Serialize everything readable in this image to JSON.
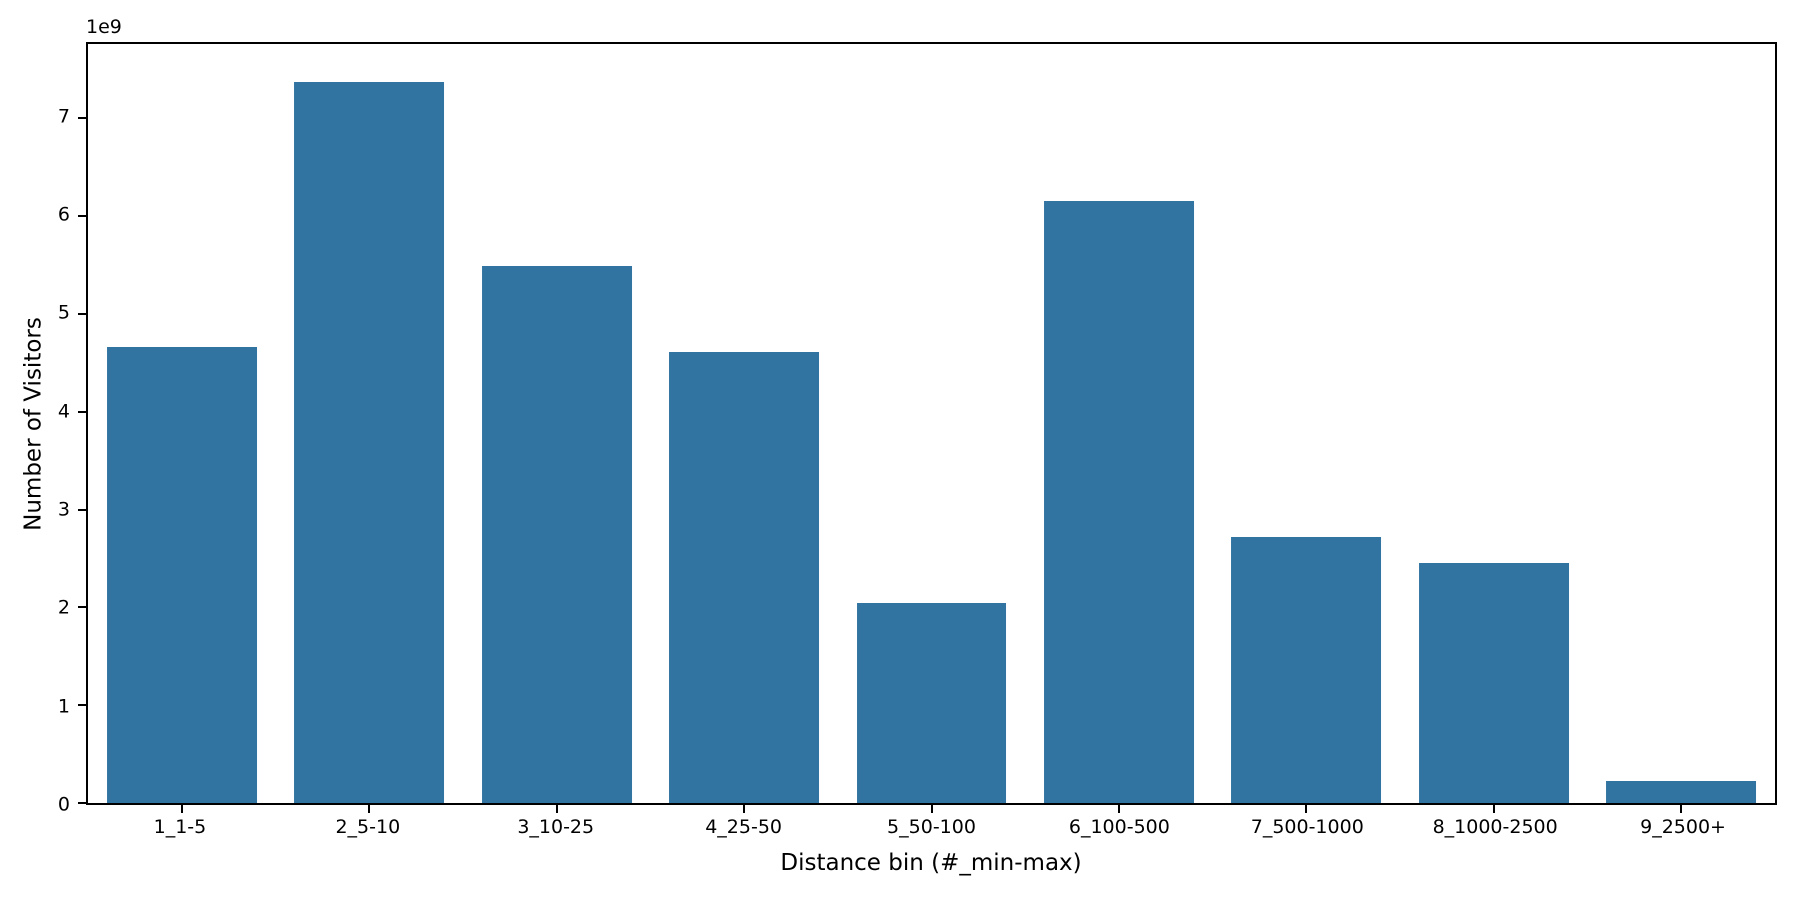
{
  "figure": {
    "background": "#ffffff",
    "bar_color": "#3274a1",
    "axis_color": "#000000",
    "text_color": "#000000"
  },
  "chart_data": {
    "type": "bar",
    "title": "",
    "xlabel": "Distance bin (#_min-max)",
    "ylabel": "Number of Visitors",
    "y_offset_text": "1e9",
    "grid": false,
    "legend_position": "none",
    "bar_width_fraction": 0.8,
    "categories": [
      "1_1-5",
      "2_5-10",
      "3_10-25",
      "4_25-50",
      "5_50-100",
      "6_100-500",
      "7_500-1000",
      "8_1000-2500",
      "9_2500+"
    ],
    "values": [
      4660000000,
      7370000000,
      5490000000,
      4610000000,
      2050000000,
      6150000000,
      2720000000,
      2450000000,
      220000000
    ],
    "ylim": [
      0,
      7760000000
    ],
    "yticks": [
      {
        "label": "0",
        "value": 0
      },
      {
        "label": "1",
        "value": 1000000000
      },
      {
        "label": "2",
        "value": 2000000000
      },
      {
        "label": "3",
        "value": 3000000000
      },
      {
        "label": "4",
        "value": 4000000000
      },
      {
        "label": "5",
        "value": 5000000000
      },
      {
        "label": "6",
        "value": 6000000000
      },
      {
        "label": "7",
        "value": 7000000000
      }
    ]
  }
}
